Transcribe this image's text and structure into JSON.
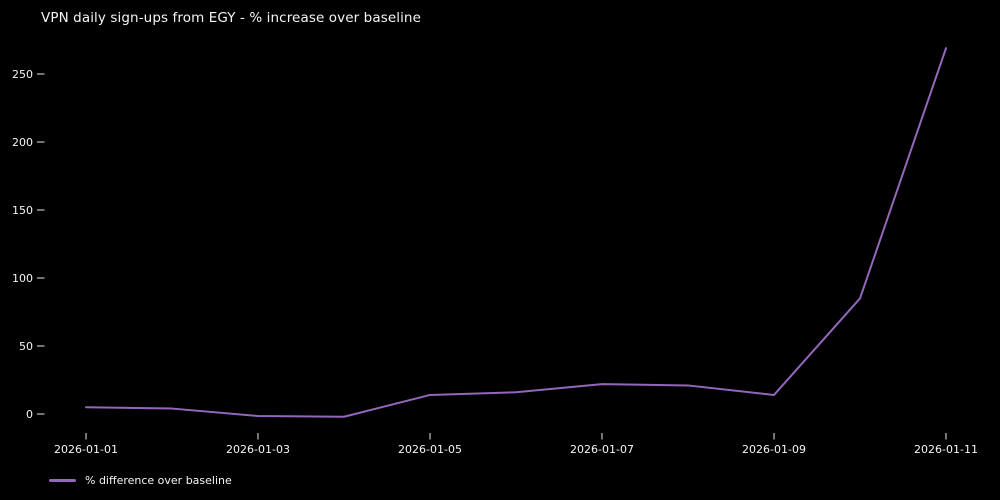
{
  "title": "VPN daily sign-ups from EGY - % increase over baseline",
  "legend": {
    "label": "% difference over baseline"
  },
  "colors": {
    "background": "#000000",
    "text": "#f5f5f5",
    "tick": "#e8e8e8",
    "line": "#9467bd"
  },
  "chart_data": {
    "type": "line",
    "title": "VPN daily sign-ups from EGY - % increase over baseline",
    "x": [
      "2026-01-01",
      "2026-01-02",
      "2026-01-03",
      "2026-01-04",
      "2026-01-05",
      "2026-01-06",
      "2026-01-07",
      "2026-01-08",
      "2026-01-09",
      "2026-01-10",
      "2026-01-11"
    ],
    "series": [
      {
        "name": "% difference over baseline",
        "values": [
          5,
          4,
          -1.5,
          -2,
          14,
          16,
          22,
          21,
          14,
          85,
          269
        ],
        "color": "#9467bd"
      }
    ],
    "x_tick_labels": [
      "2026-01-01",
      "2026-01-03",
      "2026-01-05",
      "2026-01-07",
      "2026-01-09",
      "2026-01-11"
    ],
    "y_ticks": [
      0,
      50,
      100,
      150,
      200,
      250
    ],
    "ylim": [
      -14,
      277
    ],
    "xlabel": "",
    "ylabel": "",
    "grid": false,
    "legend_position": "bottom-left"
  }
}
